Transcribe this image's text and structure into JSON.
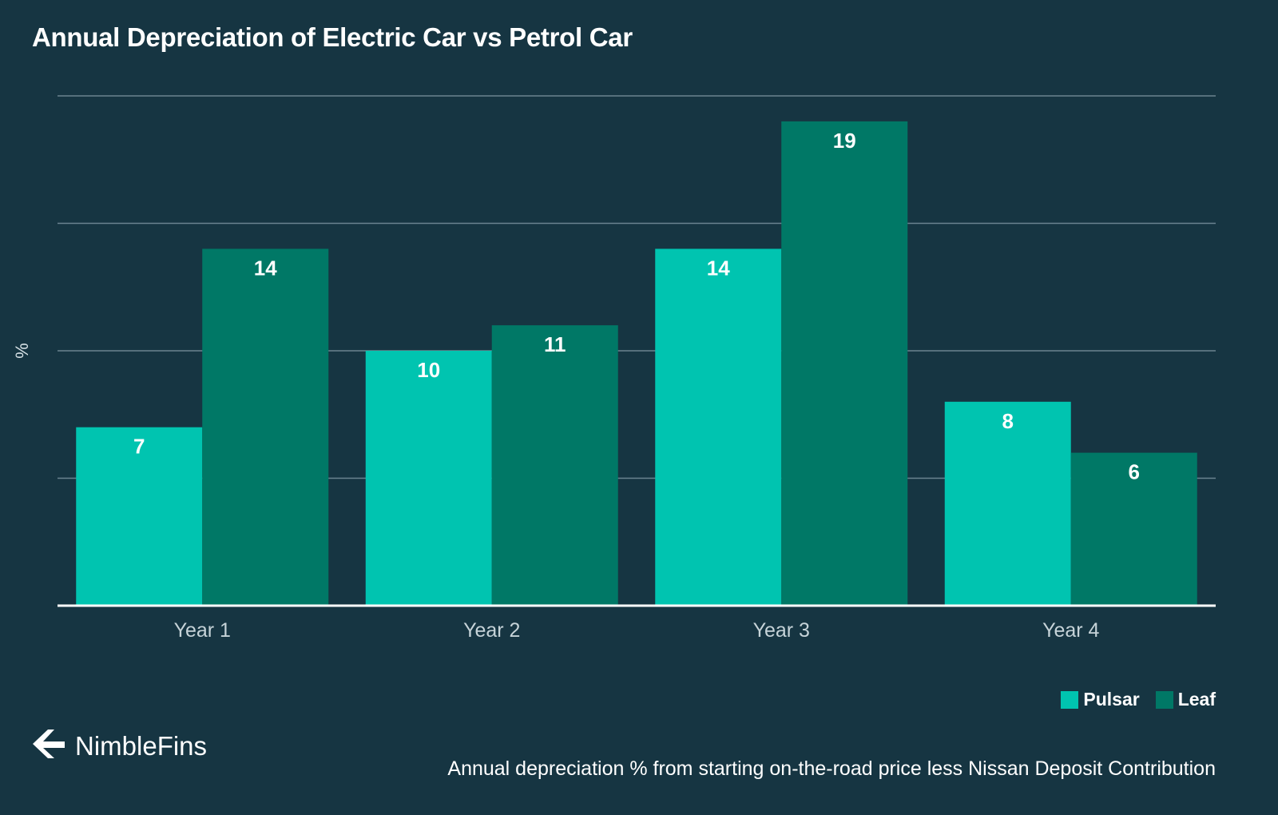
{
  "colors": {
    "background": "#163542",
    "gridline": "#6b8490",
    "pulsar": "#00c4b0",
    "leaf": "#007866",
    "tick_text": "#c6d3d8",
    "bar_label": "#ffffff"
  },
  "header": {
    "title": "Annual Depreciation of Electric Car vs Petrol Car"
  },
  "brand": {
    "icon": "nimblefins-logo-icon",
    "name": "NimbleFins"
  },
  "footer": {
    "note": "Annual depreciation % from starting on-the-road price less Nissan Deposit Contribution"
  },
  "chart_data": {
    "type": "bar",
    "title": "Annual Depreciation of Electric Car vs Petrol Car",
    "xlabel": "",
    "ylabel": "%",
    "categories": [
      "Year 1",
      "Year 2",
      "Year 3",
      "Year 4"
    ],
    "series": [
      {
        "name": "Pulsar",
        "values": [
          7,
          10,
          14,
          8
        ]
      },
      {
        "name": "Leaf",
        "values": [
          14,
          11,
          19,
          6
        ]
      }
    ],
    "ylim": [
      0,
      20
    ],
    "grid": true,
    "legend_position": "bottom-right",
    "data_labels": true
  }
}
